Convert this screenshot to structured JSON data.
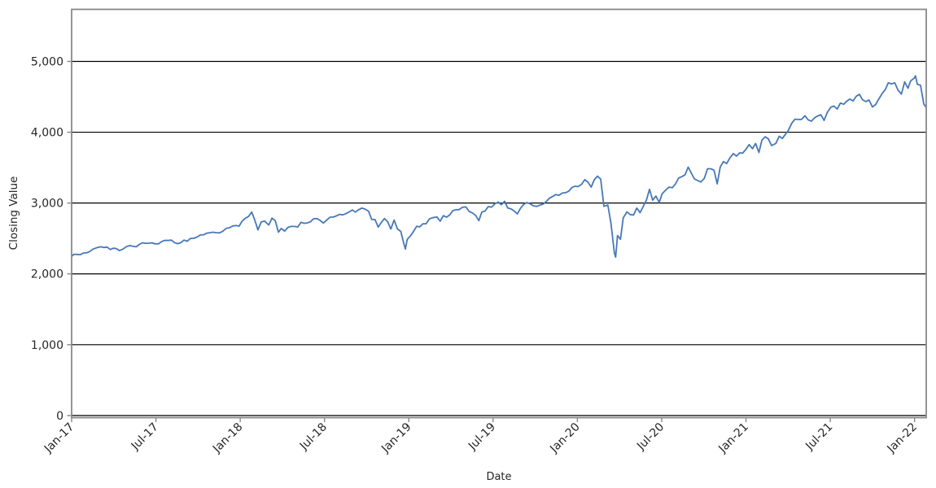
{
  "chart_data": {
    "type": "line",
    "title": "",
    "xlabel": "Date",
    "ylabel": "Closing Value",
    "legend": "none",
    "grid": "horizontal-black",
    "background": "#ffffff",
    "colors": {
      "line": "#4678b8",
      "grid": "#000000",
      "spine": "#888888",
      "tick": "#888888",
      "text": "#262626"
    },
    "x_tick_labels": [
      "Jan-17",
      "Jul-17",
      "Jan-18",
      "Jul-18",
      "Jan-19",
      "Jul-19",
      "Jan-20",
      "Jul-20",
      "Jan-21",
      "Jul-21",
      "Jan-22"
    ],
    "x_tick_months": [
      0,
      6,
      12,
      18,
      24,
      30,
      36,
      42,
      48,
      54,
      60
    ],
    "x_range_months": [
      0,
      60.83
    ],
    "y_ticks": [
      0,
      1000,
      2000,
      3000,
      4000,
      5000
    ],
    "y_tick_labels": [
      "0",
      "1,000",
      "2,000",
      "3,000",
      "4,000",
      "5,000"
    ],
    "ylim": [
      -30,
      5735
    ],
    "series": [
      {
        "name": "Closing Value",
        "points": [
          [
            "2017-01-03",
            2257
          ],
          [
            "2017-01-06",
            2277
          ],
          [
            "2017-01-13",
            2275
          ],
          [
            "2017-01-20",
            2271
          ],
          [
            "2017-01-27",
            2295
          ],
          [
            "2017-02-03",
            2297
          ],
          [
            "2017-02-10",
            2316
          ],
          [
            "2017-02-17",
            2351
          ],
          [
            "2017-02-24",
            2367
          ],
          [
            "2017-03-03",
            2383
          ],
          [
            "2017-03-10",
            2373
          ],
          [
            "2017-03-17",
            2378
          ],
          [
            "2017-03-24",
            2344
          ],
          [
            "2017-03-31",
            2363
          ],
          [
            "2017-04-07",
            2356
          ],
          [
            "2017-04-13",
            2329
          ],
          [
            "2017-04-21",
            2349
          ],
          [
            "2017-04-28",
            2384
          ],
          [
            "2017-05-05",
            2399
          ],
          [
            "2017-05-12",
            2391
          ],
          [
            "2017-05-19",
            2382
          ],
          [
            "2017-05-26",
            2416
          ],
          [
            "2017-06-02",
            2439
          ],
          [
            "2017-06-09",
            2432
          ],
          [
            "2017-06-16",
            2433
          ],
          [
            "2017-06-23",
            2438
          ],
          [
            "2017-06-30",
            2423
          ],
          [
            "2017-07-07",
            2425
          ],
          [
            "2017-07-14",
            2459
          ],
          [
            "2017-07-21",
            2473
          ],
          [
            "2017-07-28",
            2472
          ],
          [
            "2017-08-04",
            2477
          ],
          [
            "2017-08-11",
            2441
          ],
          [
            "2017-08-18",
            2426
          ],
          [
            "2017-08-25",
            2443
          ],
          [
            "2017-09-01",
            2477
          ],
          [
            "2017-09-08",
            2461
          ],
          [
            "2017-09-15",
            2500
          ],
          [
            "2017-09-22",
            2502
          ],
          [
            "2017-09-29",
            2519
          ],
          [
            "2017-10-06",
            2549
          ],
          [
            "2017-10-13",
            2553
          ],
          [
            "2017-10-20",
            2575
          ],
          [
            "2017-10-27",
            2581
          ],
          [
            "2017-11-03",
            2588
          ],
          [
            "2017-11-10",
            2582
          ],
          [
            "2017-11-17",
            2579
          ],
          [
            "2017-11-24",
            2602
          ],
          [
            "2017-12-01",
            2642
          ],
          [
            "2017-12-08",
            2652
          ],
          [
            "2017-12-15",
            2676
          ],
          [
            "2017-12-22",
            2683
          ],
          [
            "2017-12-29",
            2674
          ],
          [
            "2018-01-05",
            2743
          ],
          [
            "2018-01-12",
            2786
          ],
          [
            "2018-01-19",
            2810
          ],
          [
            "2018-01-26",
            2873
          ],
          [
            "2018-02-02",
            2762
          ],
          [
            "2018-02-09",
            2620
          ],
          [
            "2018-02-16",
            2732
          ],
          [
            "2018-02-23",
            2747
          ],
          [
            "2018-03-02",
            2691
          ],
          [
            "2018-03-09",
            2787
          ],
          [
            "2018-03-16",
            2752
          ],
          [
            "2018-03-23",
            2588
          ],
          [
            "2018-03-29",
            2641
          ],
          [
            "2018-04-06",
            2604
          ],
          [
            "2018-04-13",
            2656
          ],
          [
            "2018-04-20",
            2670
          ],
          [
            "2018-04-27",
            2670
          ],
          [
            "2018-05-04",
            2663
          ],
          [
            "2018-05-11",
            2728
          ],
          [
            "2018-05-18",
            2713
          ],
          [
            "2018-05-25",
            2721
          ],
          [
            "2018-06-01",
            2735
          ],
          [
            "2018-06-08",
            2779
          ],
          [
            "2018-06-15",
            2780
          ],
          [
            "2018-06-22",
            2755
          ],
          [
            "2018-06-29",
            2718
          ],
          [
            "2018-07-06",
            2760
          ],
          [
            "2018-07-13",
            2801
          ],
          [
            "2018-07-20",
            2802
          ],
          [
            "2018-07-27",
            2819
          ],
          [
            "2018-08-03",
            2840
          ],
          [
            "2018-08-10",
            2833
          ],
          [
            "2018-08-17",
            2850
          ],
          [
            "2018-08-24",
            2875
          ],
          [
            "2018-08-31",
            2902
          ],
          [
            "2018-09-07",
            2872
          ],
          [
            "2018-09-14",
            2905
          ],
          [
            "2018-09-21",
            2930
          ],
          [
            "2018-09-28",
            2914
          ],
          [
            "2018-10-05",
            2886
          ],
          [
            "2018-10-12",
            2767
          ],
          [
            "2018-10-19",
            2768
          ],
          [
            "2018-10-26",
            2659
          ],
          [
            "2018-11-02",
            2723
          ],
          [
            "2018-11-09",
            2781
          ],
          [
            "2018-11-16",
            2736
          ],
          [
            "2018-11-23",
            2633
          ],
          [
            "2018-11-30",
            2760
          ],
          [
            "2018-12-07",
            2633
          ],
          [
            "2018-12-14",
            2600
          ],
          [
            "2018-12-21",
            2417
          ],
          [
            "2018-12-24",
            2351
          ],
          [
            "2018-12-28",
            2486
          ],
          [
            "2019-01-04",
            2532
          ],
          [
            "2019-01-11",
            2596
          ],
          [
            "2019-01-18",
            2671
          ],
          [
            "2019-01-25",
            2665
          ],
          [
            "2019-02-01",
            2707
          ],
          [
            "2019-02-08",
            2708
          ],
          [
            "2019-02-15",
            2776
          ],
          [
            "2019-02-22",
            2793
          ],
          [
            "2019-03-01",
            2804
          ],
          [
            "2019-03-08",
            2743
          ],
          [
            "2019-03-15",
            2822
          ],
          [
            "2019-03-22",
            2801
          ],
          [
            "2019-03-29",
            2834
          ],
          [
            "2019-04-05",
            2893
          ],
          [
            "2019-04-12",
            2907
          ],
          [
            "2019-04-18",
            2905
          ],
          [
            "2019-04-26",
            2940
          ],
          [
            "2019-05-03",
            2946
          ],
          [
            "2019-05-10",
            2881
          ],
          [
            "2019-05-17",
            2860
          ],
          [
            "2019-05-24",
            2826
          ],
          [
            "2019-05-31",
            2752
          ],
          [
            "2019-06-07",
            2873
          ],
          [
            "2019-06-14",
            2887
          ],
          [
            "2019-06-21",
            2950
          ],
          [
            "2019-06-28",
            2942
          ],
          [
            "2019-07-05",
            2990
          ],
          [
            "2019-07-12",
            3014
          ],
          [
            "2019-07-19",
            2977
          ],
          [
            "2019-07-26",
            3026
          ],
          [
            "2019-08-02",
            2932
          ],
          [
            "2019-08-09",
            2919
          ],
          [
            "2019-08-16",
            2889
          ],
          [
            "2019-08-23",
            2847
          ],
          [
            "2019-08-30",
            2926
          ],
          [
            "2019-09-06",
            2979
          ],
          [
            "2019-09-13",
            3007
          ],
          [
            "2019-09-20",
            2992
          ],
          [
            "2019-09-27",
            2962
          ],
          [
            "2019-10-04",
            2952
          ],
          [
            "2019-10-11",
            2970
          ],
          [
            "2019-10-18",
            2986
          ],
          [
            "2019-10-25",
            3023
          ],
          [
            "2019-11-01",
            3067
          ],
          [
            "2019-11-08",
            3093
          ],
          [
            "2019-11-15",
            3120
          ],
          [
            "2019-11-22",
            3110
          ],
          [
            "2019-11-29",
            3141
          ],
          [
            "2019-12-06",
            3146
          ],
          [
            "2019-12-13",
            3169
          ],
          [
            "2019-12-20",
            3221
          ],
          [
            "2019-12-27",
            3240
          ],
          [
            "2019-12-31",
            3231
          ],
          [
            "2020-01-03",
            3235
          ],
          [
            "2020-01-10",
            3265
          ],
          [
            "2020-01-17",
            3330
          ],
          [
            "2020-01-24",
            3295
          ],
          [
            "2020-01-31",
            3226
          ],
          [
            "2020-02-07",
            3328
          ],
          [
            "2020-02-14",
            3380
          ],
          [
            "2020-02-21",
            3338
          ],
          [
            "2020-02-28",
            2954
          ],
          [
            "2020-03-06",
            2972
          ],
          [
            "2020-03-13",
            2711
          ],
          [
            "2020-03-20",
            2305
          ],
          [
            "2020-03-23",
            2237
          ],
          [
            "2020-03-27",
            2541
          ],
          [
            "2020-04-03",
            2489
          ],
          [
            "2020-04-09",
            2790
          ],
          [
            "2020-04-17",
            2875
          ],
          [
            "2020-04-24",
            2837
          ],
          [
            "2020-05-01",
            2831
          ],
          [
            "2020-05-08",
            2930
          ],
          [
            "2020-05-15",
            2864
          ],
          [
            "2020-05-22",
            2955
          ],
          [
            "2020-05-29",
            3044
          ],
          [
            "2020-06-05",
            3194
          ],
          [
            "2020-06-12",
            3041
          ],
          [
            "2020-06-19",
            3098
          ],
          [
            "2020-06-26",
            3009
          ],
          [
            "2020-07-02",
            3130
          ],
          [
            "2020-07-10",
            3185
          ],
          [
            "2020-07-17",
            3225
          ],
          [
            "2020-07-24",
            3216
          ],
          [
            "2020-07-31",
            3271
          ],
          [
            "2020-08-07",
            3351
          ],
          [
            "2020-08-14",
            3373
          ],
          [
            "2020-08-21",
            3397
          ],
          [
            "2020-08-28",
            3508
          ],
          [
            "2020-09-04",
            3427
          ],
          [
            "2020-09-11",
            3341
          ],
          [
            "2020-09-18",
            3319
          ],
          [
            "2020-09-25",
            3298
          ],
          [
            "2020-10-02",
            3348
          ],
          [
            "2020-10-09",
            3484
          ],
          [
            "2020-10-16",
            3484
          ],
          [
            "2020-10-23",
            3465
          ],
          [
            "2020-10-30",
            3270
          ],
          [
            "2020-11-06",
            3509
          ],
          [
            "2020-11-13",
            3585
          ],
          [
            "2020-11-20",
            3558
          ],
          [
            "2020-11-27",
            3638
          ],
          [
            "2020-12-04",
            3699
          ],
          [
            "2020-12-11",
            3663
          ],
          [
            "2020-12-18",
            3709
          ],
          [
            "2020-12-24",
            3703
          ],
          [
            "2020-12-31",
            3756
          ],
          [
            "2021-01-08",
            3825
          ],
          [
            "2021-01-15",
            3768
          ],
          [
            "2021-01-22",
            3841
          ],
          [
            "2021-01-29",
            3714
          ],
          [
            "2021-02-05",
            3887
          ],
          [
            "2021-02-12",
            3935
          ],
          [
            "2021-02-19",
            3907
          ],
          [
            "2021-02-26",
            3811
          ],
          [
            "2021-03-05",
            3842
          ],
          [
            "2021-03-12",
            3943
          ],
          [
            "2021-03-19",
            3913
          ],
          [
            "2021-03-26",
            3975
          ],
          [
            "2021-04-01",
            4020
          ],
          [
            "2021-04-09",
            4129
          ],
          [
            "2021-04-16",
            4185
          ],
          [
            "2021-04-23",
            4180
          ],
          [
            "2021-04-30",
            4181
          ],
          [
            "2021-05-07",
            4233
          ],
          [
            "2021-05-14",
            4174
          ],
          [
            "2021-05-21",
            4156
          ],
          [
            "2021-05-28",
            4204
          ],
          [
            "2021-06-04",
            4230
          ],
          [
            "2021-06-11",
            4247
          ],
          [
            "2021-06-18",
            4166
          ],
          [
            "2021-06-25",
            4281
          ],
          [
            "2021-07-02",
            4352
          ],
          [
            "2021-07-09",
            4370
          ],
          [
            "2021-07-16",
            4327
          ],
          [
            "2021-07-23",
            4412
          ],
          [
            "2021-07-30",
            4395
          ],
          [
            "2021-08-06",
            4437
          ],
          [
            "2021-08-13",
            4468
          ],
          [
            "2021-08-20",
            4442
          ],
          [
            "2021-08-27",
            4509
          ],
          [
            "2021-09-03",
            4535
          ],
          [
            "2021-09-10",
            4459
          ],
          [
            "2021-09-17",
            4433
          ],
          [
            "2021-09-24",
            4455
          ],
          [
            "2021-10-01",
            4357
          ],
          [
            "2021-10-08",
            4391
          ],
          [
            "2021-10-15",
            4471
          ],
          [
            "2021-10-22",
            4545
          ],
          [
            "2021-10-29",
            4605
          ],
          [
            "2021-11-05",
            4698
          ],
          [
            "2021-11-12",
            4683
          ],
          [
            "2021-11-19",
            4698
          ],
          [
            "2021-11-26",
            4595
          ],
          [
            "2021-12-03",
            4538
          ],
          [
            "2021-12-10",
            4712
          ],
          [
            "2021-12-17",
            4621
          ],
          [
            "2021-12-23",
            4726
          ],
          [
            "2021-12-31",
            4766
          ],
          [
            "2022-01-03",
            4797
          ],
          [
            "2022-01-07",
            4677
          ],
          [
            "2022-01-14",
            4663
          ],
          [
            "2022-01-21",
            4398
          ],
          [
            "2022-01-26",
            4350
          ]
        ]
      }
    ]
  }
}
